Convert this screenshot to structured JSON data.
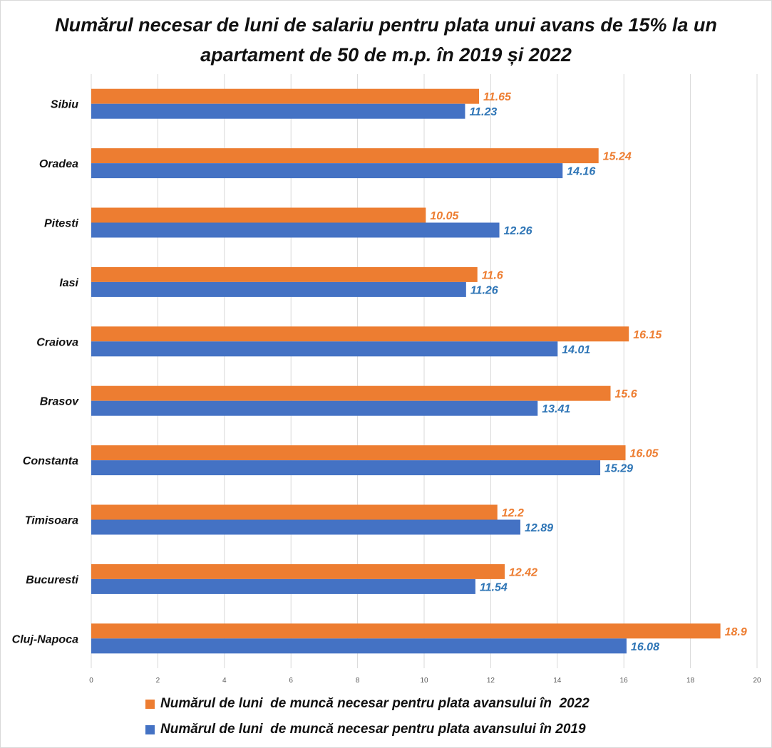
{
  "chart_data": {
    "type": "bar",
    "orientation": "horizontal",
    "title": "Numărul necesar de luni de salariu pentru plata unui avans de 15% la un apartament de 50 de m.p. în 2019 și 2022",
    "categories": [
      "Sibiu",
      "Oradea",
      "Pitesti",
      "Iasi",
      "Craiova",
      "Brasov",
      "Constanta",
      "Timisoara",
      "Bucuresti",
      "Cluj-Napoca"
    ],
    "series": [
      {
        "name": "Numărul de luni  de muncă necesar pentru plata avansului în  2022",
        "color": "#ed7d31",
        "values": [
          11.65,
          15.24,
          10.05,
          11.6,
          16.15,
          15.6,
          16.05,
          12.2,
          12.42,
          18.9
        ],
        "labels": [
          "11.65",
          "15.24",
          "10.05",
          "11.6",
          "16.15",
          "15.6",
          "16.05",
          "12.2",
          "12.42",
          "18.9"
        ]
      },
      {
        "name": "Numărul de luni  de muncă necesar pentru plata avansului în 2019",
        "color": "#4472c4",
        "values": [
          11.23,
          14.16,
          12.26,
          11.26,
          14.01,
          13.41,
          15.29,
          12.89,
          11.54,
          16.08
        ],
        "labels": [
          "11.23",
          "14.16",
          "12.26",
          "11.26",
          "14.01",
          "13.41",
          "15.29",
          "12.89",
          "11.54",
          "16.08"
        ]
      }
    ],
    "label_colors": [
      "#ed7d31",
      "#2e75b6"
    ],
    "xlim": [
      0,
      20
    ],
    "xticks": [
      "0",
      "2",
      "4",
      "6",
      "8",
      "10",
      "12",
      "14",
      "16",
      "18",
      "20"
    ],
    "grid": "vertical",
    "legend_position": "bottom"
  }
}
